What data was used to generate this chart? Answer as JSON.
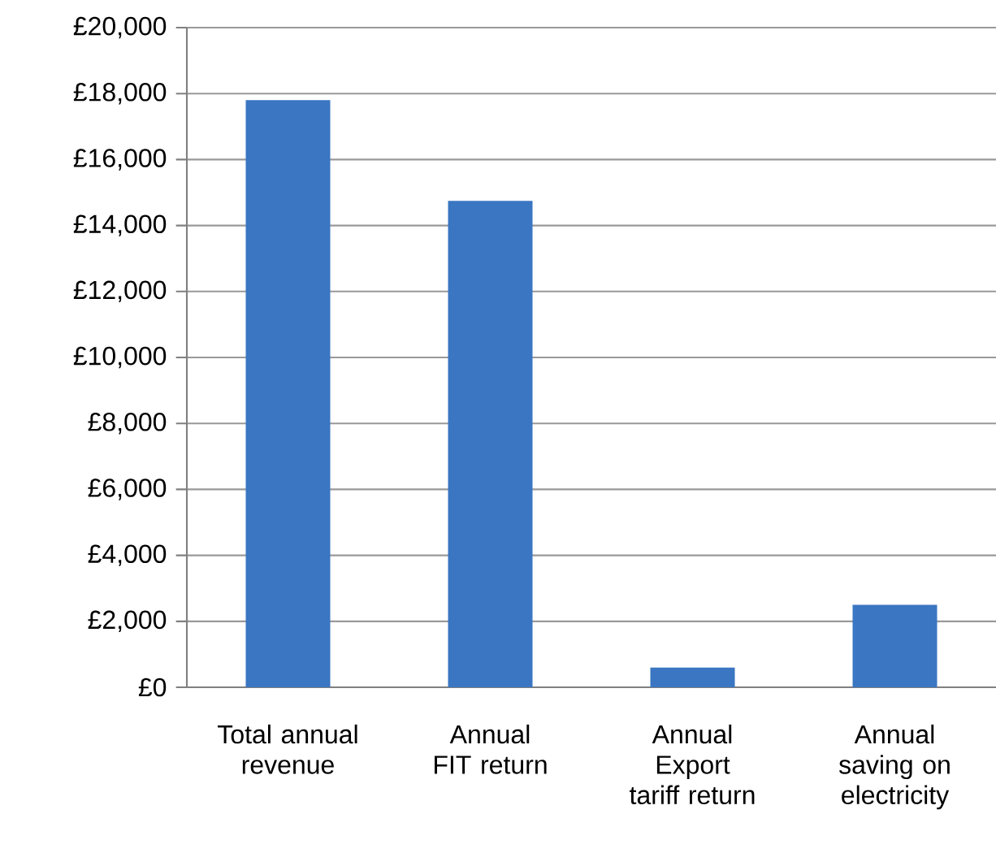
{
  "chart_data": {
    "type": "bar",
    "categories": [
      "Total annual revenue",
      "Annual FIT return",
      "Annual Export tariff return",
      "Annual saving on electricity"
    ],
    "values": [
      17800,
      14750,
      600,
      2500
    ],
    "color": "#3a76c2",
    "ylim": [
      0,
      20000
    ],
    "yticks": [
      {
        "value": 0,
        "label": "£0"
      },
      {
        "value": 2000,
        "label": "£2,000"
      },
      {
        "value": 4000,
        "label": "£4,000"
      },
      {
        "value": 6000,
        "label": "£6,000"
      },
      {
        "value": 8000,
        "label": "£8,000"
      },
      {
        "value": 10000,
        "label": "£10,000"
      },
      {
        "value": 12000,
        "label": "£12,000"
      },
      {
        "value": 14000,
        "label": "£14,000"
      },
      {
        "value": 16000,
        "label": "£16,000"
      },
      {
        "value": 18000,
        "label": "£18,000"
      },
      {
        "value": 20000,
        "label": "£20,000"
      }
    ],
    "grid": "y"
  }
}
